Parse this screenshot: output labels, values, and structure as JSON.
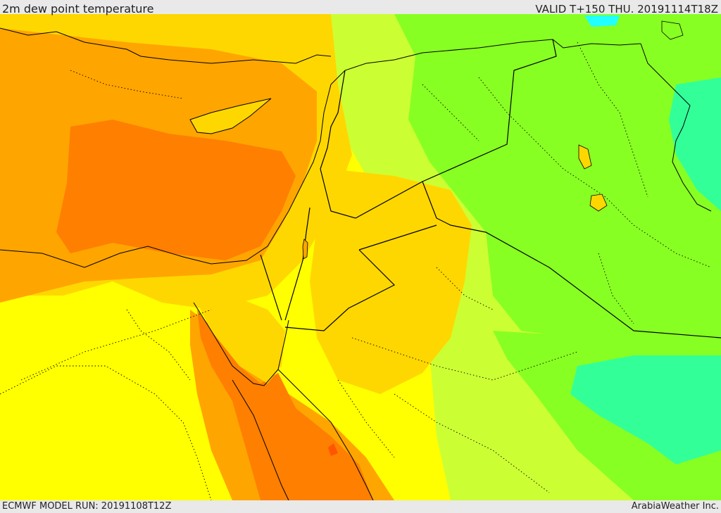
{
  "header": {
    "title": "2m dew point temperature",
    "valid": "VALID T+150 THU. 20191114T18Z"
  },
  "footer": {
    "model_run": "ECMWF MODEL RUN: 20191108T12Z",
    "provider": "ArabiaWeather Inc."
  },
  "map": {
    "field": "2m dew point temperature",
    "colors": {
      "orange_dark": "#ff7f00",
      "orange": "#ffa500",
      "gold": "#ffd700",
      "yellow": "#ffff00",
      "yellow_green": "#ccff33",
      "green": "#88ff22",
      "mint": "#33ff99",
      "cyan": "#22ffff",
      "border": "#000000"
    }
  }
}
